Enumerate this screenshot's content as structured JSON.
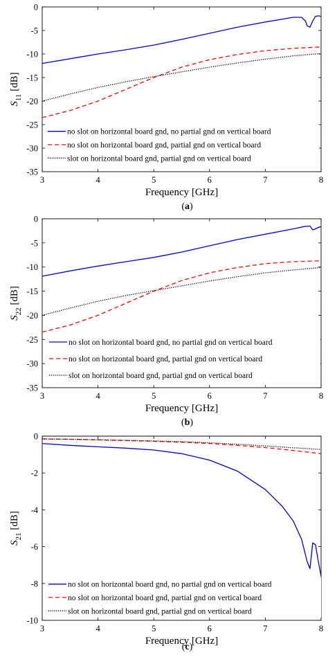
{
  "chart_data": [
    {
      "type": "line",
      "caption_letter": "a",
      "ylabel_main": "S",
      "ylabel_sub": "11",
      "ylabel_unit": " [dB]",
      "xlabel": "Frequency [GHz]",
      "xlim": [
        3,
        8
      ],
      "ylim": [
        -35,
        0
      ],
      "xticks": [
        3,
        4,
        5,
        6,
        7,
        8
      ],
      "yticks": [
        0,
        -5,
        -10,
        -15,
        -20,
        -25,
        -30,
        -35
      ],
      "grid": false,
      "legend_position": "lower-left",
      "series": [
        {
          "name": "no slot on horizontal board gnd, no partial gnd on vertical board",
          "color": "#0000cc",
          "style": "solid",
          "x": [
            3,
            3.5,
            4,
            4.5,
            5,
            5.5,
            6,
            6.5,
            7,
            7.5,
            7.65,
            7.72,
            7.75,
            7.8,
            7.85,
            7.9,
            7.95,
            8
          ],
          "y": [
            -12,
            -11,
            -10,
            -9.1,
            -8.1,
            -6.9,
            -5.6,
            -4.3,
            -3.2,
            -2.2,
            -2.2,
            -3.0,
            -4.0,
            -4.3,
            -3.0,
            -2.0,
            -1.9,
            -2.0
          ]
        },
        {
          "name": "no slot on horizontal board gnd, partial gnd on vertical board",
          "color": "#ff0000",
          "style": "dashed",
          "x": [
            3,
            3.5,
            4,
            4.5,
            5,
            5.5,
            6,
            6.5,
            7,
            7.5,
            8
          ],
          "y": [
            -23.5,
            -22,
            -20,
            -17.5,
            -15,
            -12.8,
            -11.2,
            -10.1,
            -9.3,
            -8.8,
            -8.5
          ]
        },
        {
          "name": "slot on horizontal board gnd, partial gnd on vertical board",
          "color": "#000000",
          "style": "dotted",
          "x": [
            3,
            3.5,
            4,
            4.5,
            5,
            5.5,
            6,
            6.5,
            7,
            7.5,
            8
          ],
          "y": [
            -20,
            -18.5,
            -17.1,
            -15.9,
            -14.8,
            -13.8,
            -12.8,
            -11.9,
            -11.1,
            -10.4,
            -9.9
          ]
        }
      ]
    },
    {
      "type": "line",
      "caption_letter": "b",
      "ylabel_main": "S",
      "ylabel_sub": "22",
      "ylabel_unit": " [dB]",
      "xlabel": "Frequency [GHz]",
      "xlim": [
        3,
        8
      ],
      "ylim": [
        -35,
        0
      ],
      "xticks": [
        3,
        4,
        5,
        6,
        7,
        8
      ],
      "yticks": [
        0,
        -5,
        -10,
        -15,
        -20,
        -25,
        -30,
        -35
      ],
      "grid": false,
      "legend_position": "lower-right",
      "series": [
        {
          "name": "no slot on horizontal board gnd, no partial gnd on vertical board",
          "color": "#0000cc",
          "style": "solid",
          "x": [
            3,
            3.5,
            4,
            4.5,
            5,
            5.5,
            6,
            6.5,
            7,
            7.5,
            7.7,
            7.8,
            7.85,
            7.9,
            7.95,
            8
          ],
          "y": [
            -11.9,
            -10.8,
            -9.8,
            -8.9,
            -8,
            -6.9,
            -5.6,
            -4.3,
            -3.2,
            -2.1,
            -1.6,
            -1.5,
            -2.3,
            -2.1,
            -1.8,
            -1.6
          ]
        },
        {
          "name": "no slot on horizontal board gnd, partial gnd on vertical board",
          "color": "#ff0000",
          "style": "dashed",
          "x": [
            3,
            3.5,
            4,
            4.5,
            5,
            5.5,
            6,
            6.5,
            7,
            7.5,
            8
          ],
          "y": [
            -23.5,
            -22,
            -20,
            -17.5,
            -15,
            -12.8,
            -11.2,
            -10.1,
            -9.3,
            -8.9,
            -8.7
          ]
        },
        {
          "name": "slot on horizontal board gnd, partial gnd on vertical board",
          "color": "#000000",
          "style": "dotted",
          "x": [
            3,
            3.5,
            4,
            4.5,
            5,
            5.5,
            6,
            6.5,
            7,
            7.5,
            8
          ],
          "y": [
            -20,
            -18.5,
            -17.1,
            -15.9,
            -14.9,
            -13.9,
            -12.9,
            -12.0,
            -11.2,
            -10.6,
            -10.1
          ]
        }
      ]
    },
    {
      "type": "line",
      "caption_letter": "c",
      "ylabel_main": "S",
      "ylabel_sub": "21",
      "ylabel_unit": " [dB]",
      "xlabel": "Frequency [GHz]",
      "xlim": [
        3,
        8
      ],
      "ylim": [
        -10,
        0
      ],
      "xticks": [
        3,
        4,
        5,
        6,
        7,
        8
      ],
      "yticks": [
        0,
        -2,
        -4,
        -6,
        -8,
        -10
      ],
      "grid": false,
      "legend_position": "lower-right",
      "series": [
        {
          "name": "no slot on horizontal board gnd, no partial gnd on vertical board",
          "color": "#0000cc",
          "style": "solid",
          "x": [
            3,
            3.5,
            4,
            4.5,
            5,
            5.5,
            6,
            6.5,
            7,
            7.3,
            7.5,
            7.65,
            7.75,
            7.8,
            7.85,
            7.9,
            7.95,
            8
          ],
          "y": [
            -0.4,
            -0.5,
            -0.58,
            -0.65,
            -0.75,
            -0.95,
            -1.3,
            -1.9,
            -2.9,
            -3.8,
            -4.6,
            -5.6,
            -6.8,
            -7.2,
            -5.8,
            -5.9,
            -6.8,
            -7.6
          ]
        },
        {
          "name": "no slot on horizontal board gnd, partial gnd on vertical board",
          "color": "#ff0000",
          "style": "dashed",
          "x": [
            3,
            3.5,
            4,
            4.5,
            5,
            5.5,
            6,
            6.5,
            7,
            7.5,
            8
          ],
          "y": [
            -0.15,
            -0.17,
            -0.2,
            -0.24,
            -0.28,
            -0.33,
            -0.4,
            -0.5,
            -0.62,
            -0.78,
            -0.95
          ]
        },
        {
          "name": "slot on horizontal board gnd, partial gnd on vertical board",
          "color": "#000000",
          "style": "dotted",
          "x": [
            3,
            3.5,
            4,
            4.5,
            5,
            5.5,
            6,
            6.5,
            7,
            7.5,
            8
          ],
          "y": [
            -0.15,
            -0.17,
            -0.2,
            -0.23,
            -0.26,
            -0.3,
            -0.36,
            -0.44,
            -0.53,
            -0.63,
            -0.72
          ]
        }
      ]
    }
  ]
}
